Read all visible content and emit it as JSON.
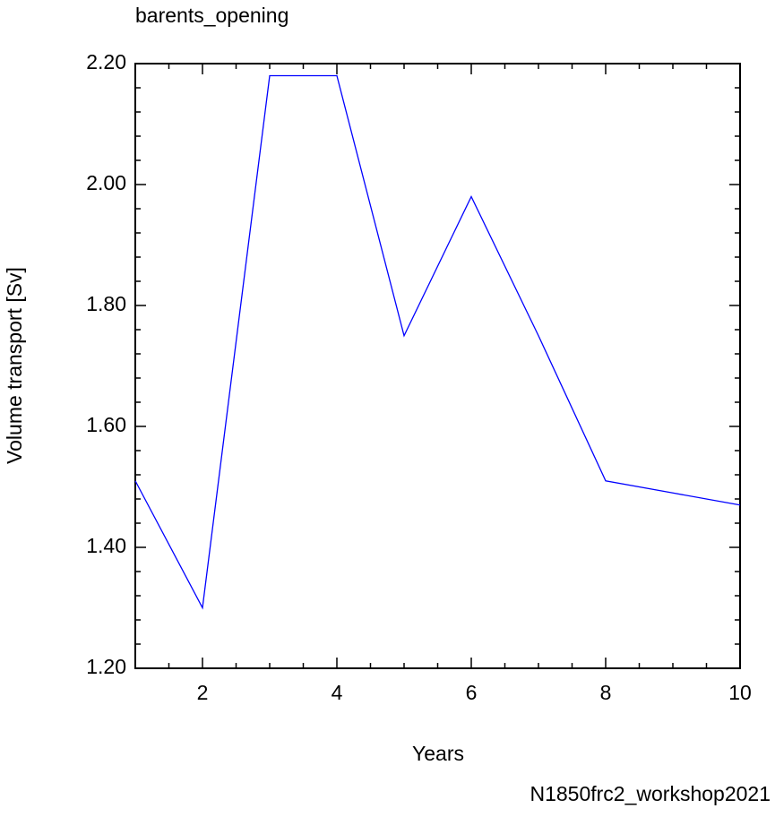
{
  "chart_data": {
    "type": "line",
    "title": "barents_opening",
    "x_label": "Years",
    "y_label": "Volume transport [Sv]",
    "annotation": "N1850frc2_workshop2021",
    "annotation_color": "#0000ff",
    "x": [
      1,
      2,
      3,
      4,
      5,
      6,
      7,
      8,
      9,
      10
    ],
    "series": [
      {
        "color": "#0000ff",
        "values": [
          1.51,
          1.3,
          2.18,
          2.18,
          1.75,
          1.98,
          1.75,
          1.51,
          1.49,
          1.47
        ]
      }
    ],
    "xlim": [
      1,
      10
    ],
    "xticks": [
      2,
      4,
      6,
      8,
      10
    ],
    "xminorticks": [
      1.5,
      2.5,
      3,
      3.5,
      4.5,
      5,
      5.5,
      6.5,
      7,
      7.5,
      8.5,
      9,
      9.5
    ],
    "ylim": [
      1.2,
      2.2
    ],
    "yticks": [
      {
        "value": 1.2,
        "label": "1.20"
      },
      {
        "value": 1.4,
        "label": "1.40"
      },
      {
        "value": 1.6,
        "label": "1.60"
      },
      {
        "value": 1.8,
        "label": "1.80"
      },
      {
        "value": 2.0,
        "label": "2.00"
      },
      {
        "value": 2.2,
        "label": "2.20"
      }
    ],
    "yminorticks": [
      1.24,
      1.28,
      1.32,
      1.36,
      1.44,
      1.48,
      1.52,
      1.56,
      1.64,
      1.68,
      1.72,
      1.76,
      1.84,
      1.88,
      1.92,
      1.96,
      2.04,
      2.08,
      2.12,
      2.16
    ],
    "grid": false
  }
}
